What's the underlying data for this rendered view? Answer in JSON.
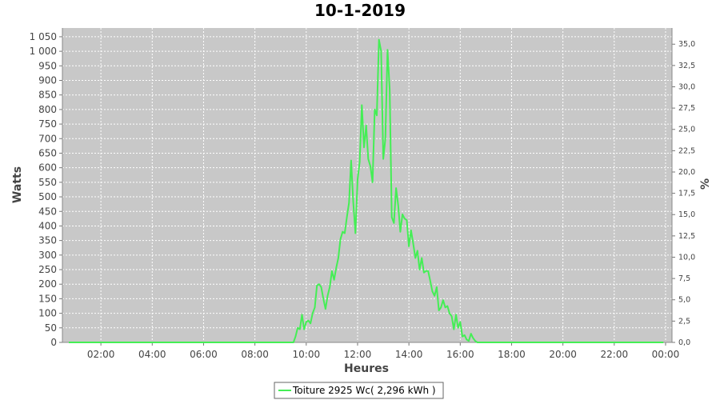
{
  "chart_data": {
    "type": "line",
    "title": "10-1-2019",
    "xlabel": "Heures",
    "ylabel": "Watts",
    "y2label": "%",
    "xlim": [
      "00:30",
      "00:15"
    ],
    "ylim": [
      0,
      1080
    ],
    "y2lim": [
      0,
      36.9
    ],
    "grid": true,
    "legend_position": "bottom",
    "x_ticks": [
      "02:00",
      "04:00",
      "06:00",
      "08:00",
      "10:00",
      "12:00",
      "14:00",
      "16:00",
      "18:00",
      "20:00",
      "22:00",
      "00:00"
    ],
    "y_ticks": [
      "0",
      "50",
      "100",
      "150",
      "200",
      "250",
      "300",
      "350",
      "400",
      "450",
      "500",
      "550",
      "600",
      "650",
      "700",
      "750",
      "800",
      "850",
      "900",
      "950",
      "1 000",
      "1 050"
    ],
    "y2_ticks": [
      "0,0",
      "2,5",
      "5,0",
      "7,5",
      "10,0",
      "12,5",
      "15,0",
      "17,5",
      "20,0",
      "22,5",
      "25,0",
      "27,5",
      "30,0",
      "32,5",
      "35,0"
    ],
    "series": [
      {
        "name": "Toiture 2925 Wc( 2,296 kWh )",
        "color": "#44ee55",
        "points": [
          [
            "00:45",
            0
          ],
          [
            "02:00",
            0
          ],
          [
            "04:00",
            0
          ],
          [
            "06:00",
            0
          ],
          [
            "08:00",
            0
          ],
          [
            "09:00",
            0
          ],
          [
            "09:30",
            0
          ],
          [
            "09:35",
            20
          ],
          [
            "09:40",
            50
          ],
          [
            "09:45",
            45
          ],
          [
            "09:50",
            95
          ],
          [
            "09:55",
            45
          ],
          [
            "10:00",
            70
          ],
          [
            "10:05",
            75
          ],
          [
            "10:10",
            65
          ],
          [
            "10:15",
            100
          ],
          [
            "10:20",
            120
          ],
          [
            "10:25",
            195
          ],
          [
            "10:30",
            200
          ],
          [
            "10:35",
            190
          ],
          [
            "10:40",
            150
          ],
          [
            "10:45",
            115
          ],
          [
            "10:50",
            160
          ],
          [
            "10:55",
            190
          ],
          [
            "11:00",
            245
          ],
          [
            "11:05",
            215
          ],
          [
            "11:10",
            255
          ],
          [
            "11:15",
            290
          ],
          [
            "11:20",
            355
          ],
          [
            "11:25",
            380
          ],
          [
            "11:30",
            375
          ],
          [
            "11:35",
            430
          ],
          [
            "11:40",
            480
          ],
          [
            "11:45",
            625
          ],
          [
            "11:50",
            480
          ],
          [
            "11:55",
            375
          ],
          [
            "12:00",
            560
          ],
          [
            "12:05",
            620
          ],
          [
            "12:10",
            815
          ],
          [
            "12:15",
            670
          ],
          [
            "12:20",
            745
          ],
          [
            "12:25",
            630
          ],
          [
            "12:30",
            605
          ],
          [
            "12:35",
            550
          ],
          [
            "12:40",
            800
          ],
          [
            "12:45",
            780
          ],
          [
            "12:50",
            1040
          ],
          [
            "12:55",
            1000
          ],
          [
            "13:00",
            630
          ],
          [
            "13:05",
            700
          ],
          [
            "13:10",
            1005
          ],
          [
            "13:15",
            870
          ],
          [
            "13:20",
            430
          ],
          [
            "13:25",
            410
          ],
          [
            "13:30",
            530
          ],
          [
            "13:35",
            470
          ],
          [
            "13:40",
            380
          ],
          [
            "13:45",
            440
          ],
          [
            "13:50",
            425
          ],
          [
            "13:55",
            420
          ],
          [
            "14:00",
            330
          ],
          [
            "14:05",
            385
          ],
          [
            "14:10",
            340
          ],
          [
            "14:15",
            290
          ],
          [
            "14:20",
            315
          ],
          [
            "14:25",
            250
          ],
          [
            "14:30",
            290
          ],
          [
            "14:35",
            240
          ],
          [
            "14:40",
            245
          ],
          [
            "14:45",
            245
          ],
          [
            "14:50",
            210
          ],
          [
            "14:55",
            175
          ],
          [
            "15:00",
            160
          ],
          [
            "15:05",
            190
          ],
          [
            "15:10",
            110
          ],
          [
            "15:15",
            120
          ],
          [
            "15:20",
            145
          ],
          [
            "15:25",
            120
          ],
          [
            "15:30",
            125
          ],
          [
            "15:35",
            100
          ],
          [
            "15:40",
            90
          ],
          [
            "15:45",
            45
          ],
          [
            "15:50",
            95
          ],
          [
            "15:55",
            50
          ],
          [
            "16:00",
            70
          ],
          [
            "16:05",
            20
          ],
          [
            "16:10",
            25
          ],
          [
            "16:15",
            10
          ],
          [
            "16:20",
            5
          ],
          [
            "16:25",
            30
          ],
          [
            "16:30",
            15
          ],
          [
            "16:35",
            5
          ],
          [
            "16:40",
            0
          ],
          [
            "18:00",
            0
          ],
          [
            "20:00",
            0
          ],
          [
            "22:00",
            0
          ],
          [
            "23:55",
            0
          ]
        ]
      }
    ]
  }
}
